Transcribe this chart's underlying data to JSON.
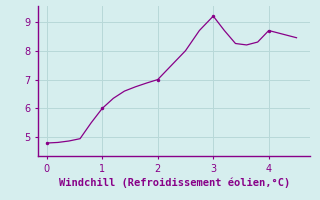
{
  "x": [
    0,
    0.2,
    0.4,
    0.6,
    0.8,
    1.0,
    1.2,
    1.4,
    1.6,
    1.8,
    2.0,
    2.2,
    2.5,
    2.75,
    3.0,
    3.2,
    3.4,
    3.6,
    3.8,
    4.0,
    4.2,
    4.5
  ],
  "y": [
    4.8,
    4.82,
    4.87,
    4.95,
    5.5,
    6.0,
    6.35,
    6.6,
    6.75,
    6.88,
    7.0,
    7.4,
    8.0,
    8.7,
    9.2,
    8.7,
    8.25,
    8.2,
    8.3,
    8.7,
    8.6,
    8.45
  ],
  "line_color": "#880088",
  "marker_x": [
    0,
    1.0,
    2.0,
    3.0,
    4.0
  ],
  "marker_y": [
    4.8,
    6.0,
    7.0,
    9.2,
    8.7
  ],
  "bg_color": "#d6eeee",
  "grid_color": "#b8d8d8",
  "spine_color": "#880088",
  "tick_color": "#880088",
  "xlabel": "Windchill (Refroidissement éolien,°C)",
  "xlabel_fontsize": 7.5,
  "tick_fontsize": 7,
  "yticks": [
    5,
    6,
    7,
    8,
    9
  ],
  "xticks": [
    0,
    1,
    2,
    3,
    4
  ],
  "xlim": [
    -0.15,
    4.75
  ],
  "ylim": [
    4.35,
    9.55
  ]
}
